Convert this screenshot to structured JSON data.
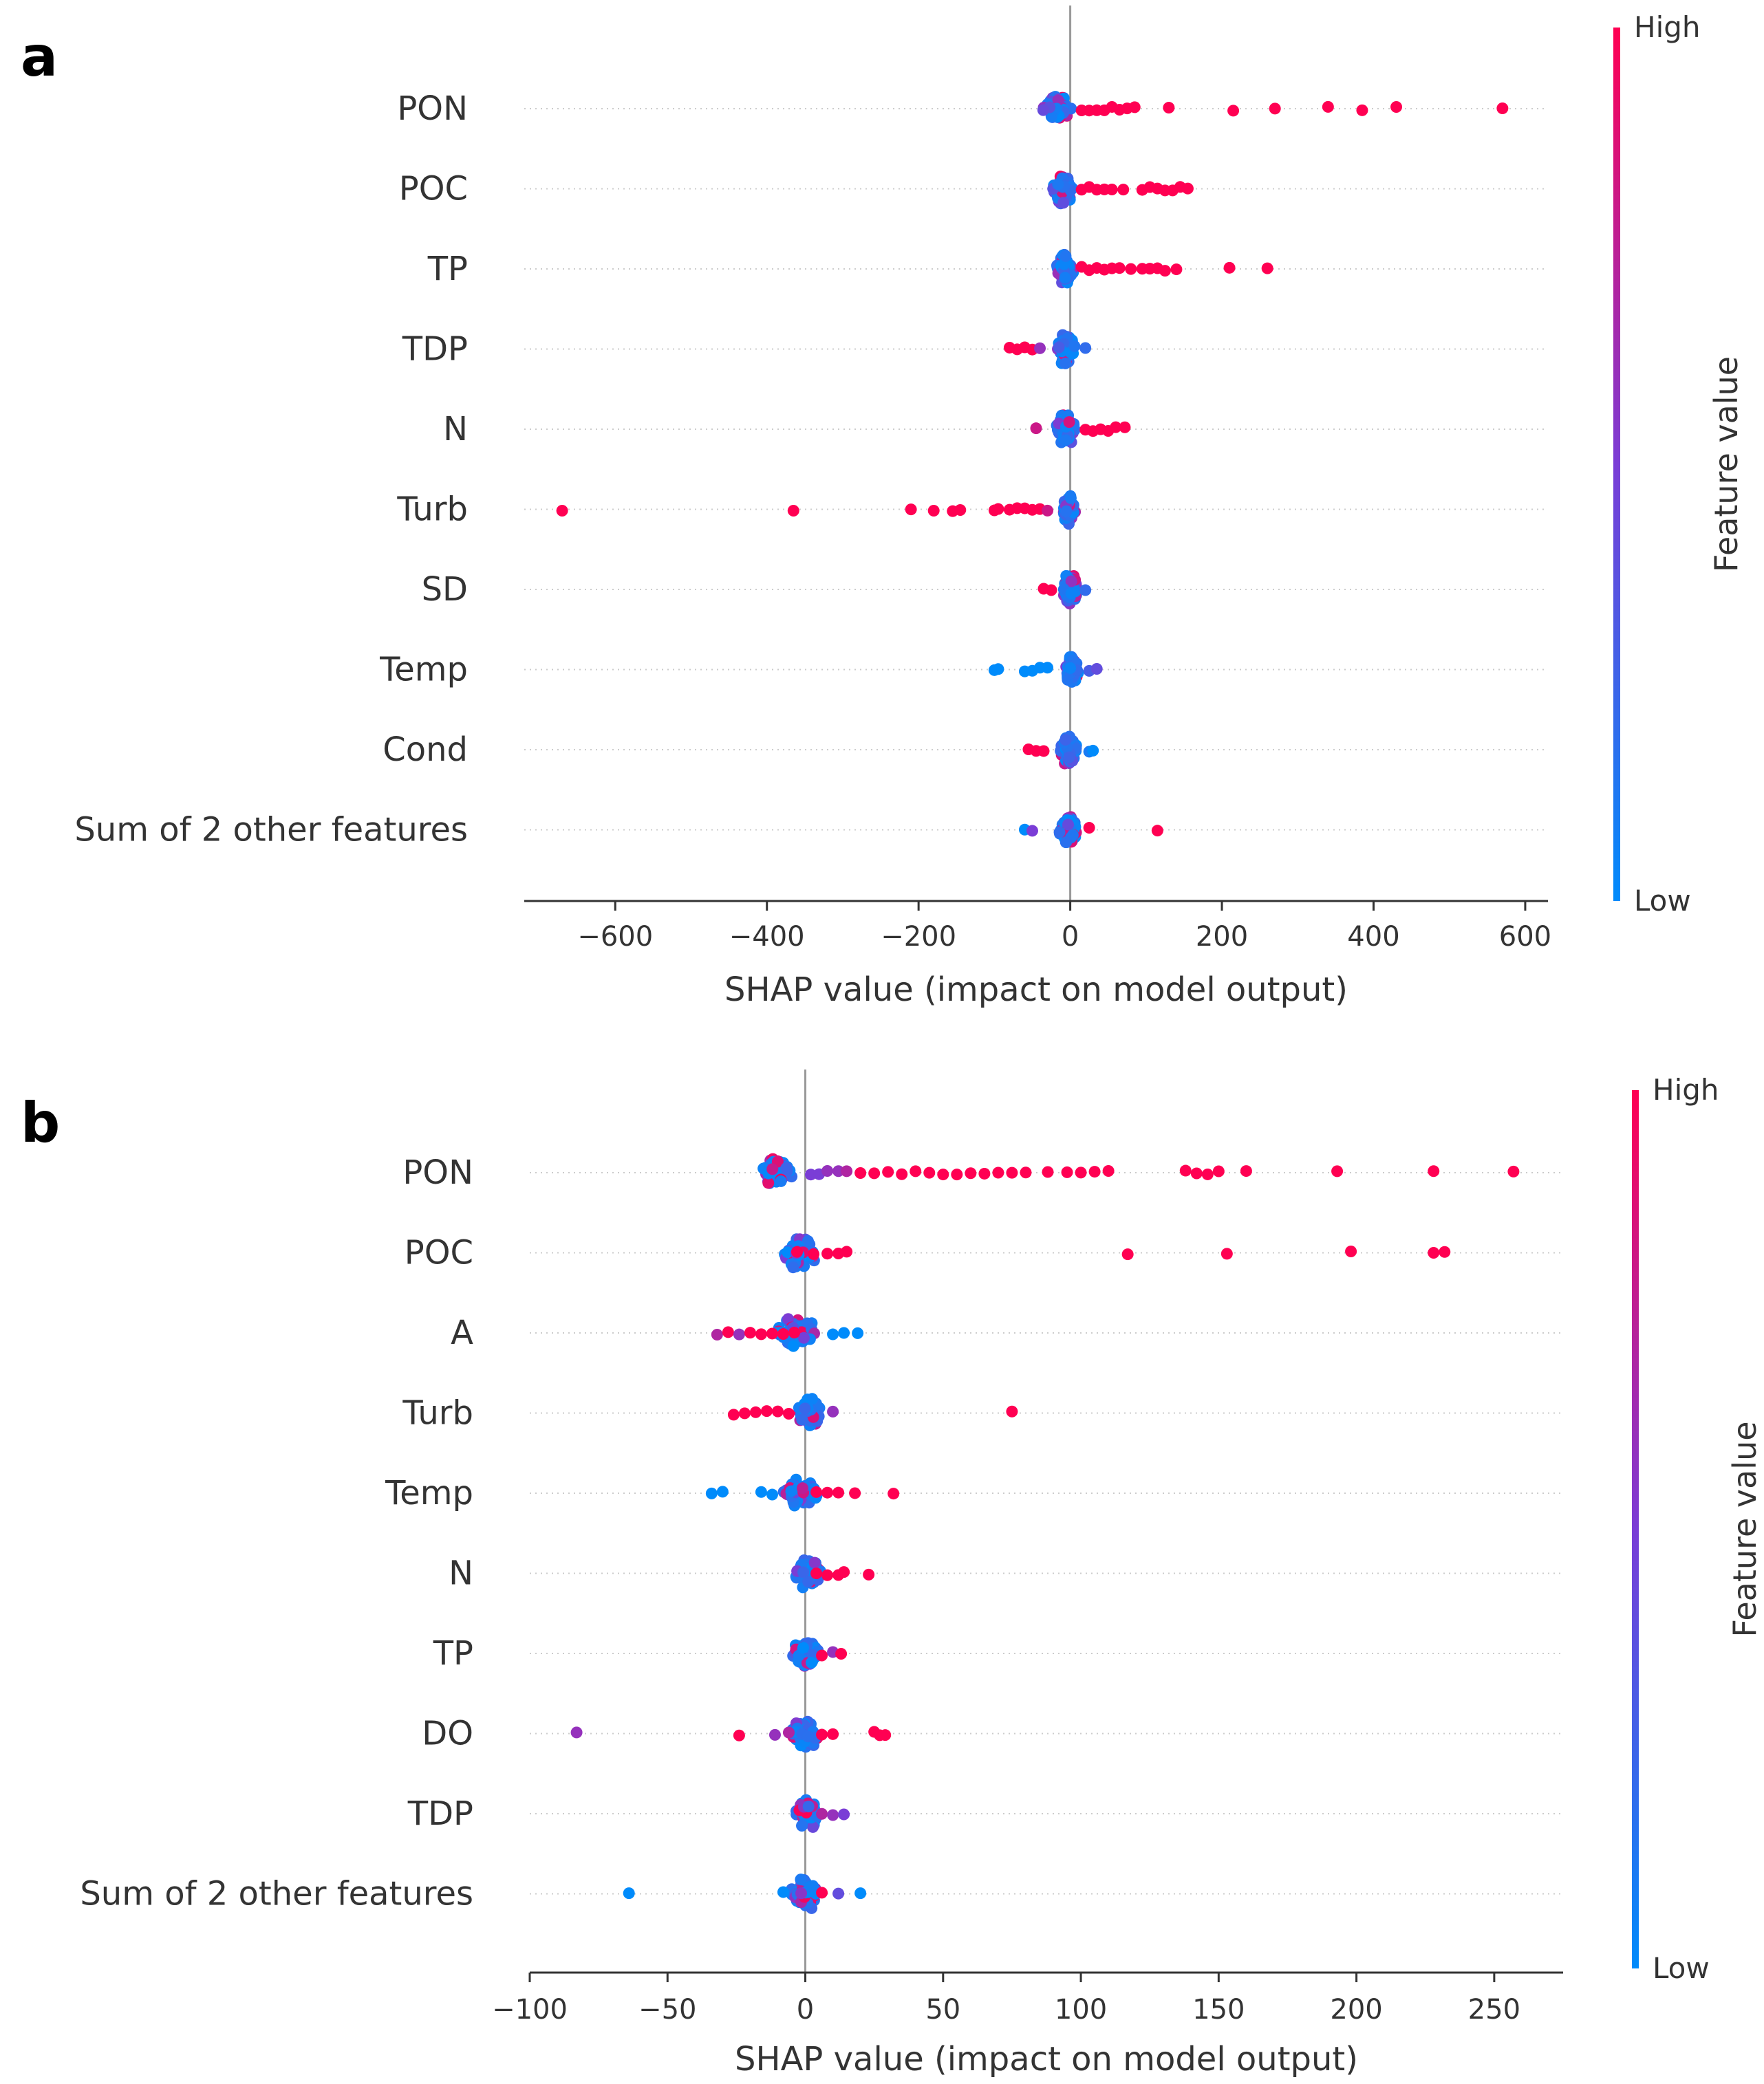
{
  "colors": {
    "high": "#ff0052",
    "low": "#008bfb",
    "zero_line": "#999999",
    "axis": "#333333",
    "guide": "#cccccc"
  },
  "chart_data": [
    {
      "panel": "a",
      "type": "scatter",
      "subtype": "shap-beeswarm",
      "xlabel": "SHAP value (impact on model output)",
      "xlim": [
        -720,
        630
      ],
      "xticks": [
        -600,
        -400,
        -200,
        0,
        200,
        400,
        600
      ],
      "xtick_labels": [
        "−600",
        "−400",
        "−200",
        "0",
        "200",
        "400",
        "600"
      ],
      "colorbar": {
        "title": "Feature value",
        "high_label": "High",
        "low_label": "Low"
      },
      "features": [
        {
          "name": "PON",
          "core": [
            -45,
            10
          ],
          "points": [
            [
              15,
              1
            ],
            [
              25,
              1
            ],
            [
              35,
              1
            ],
            [
              45,
              1
            ],
            [
              55,
              1
            ],
            [
              65,
              1
            ],
            [
              75,
              1
            ],
            [
              85,
              1
            ],
            [
              130,
              1
            ],
            [
              215,
              1
            ],
            [
              270,
              1
            ],
            [
              340,
              1
            ],
            [
              385,
              1
            ],
            [
              430,
              1
            ],
            [
              570,
              1
            ]
          ]
        },
        {
          "name": "POC",
          "core": [
            -30,
            10
          ],
          "points": [
            [
              15,
              1
            ],
            [
              25,
              1
            ],
            [
              35,
              1
            ],
            [
              45,
              1
            ],
            [
              55,
              1
            ],
            [
              70,
              1
            ],
            [
              95,
              1
            ],
            [
              105,
              1
            ],
            [
              115,
              1
            ],
            [
              125,
              1
            ],
            [
              135,
              1
            ],
            [
              145,
              1
            ],
            [
              155,
              1
            ]
          ]
        },
        {
          "name": "TP",
          "core": [
            -25,
            10
          ],
          "points": [
            [
              15,
              1
            ],
            [
              25,
              1
            ],
            [
              35,
              1
            ],
            [
              45,
              1
            ],
            [
              55,
              1
            ],
            [
              65,
              1
            ],
            [
              80,
              1
            ],
            [
              95,
              1
            ],
            [
              105,
              1
            ],
            [
              115,
              1
            ],
            [
              125,
              1
            ],
            [
              140,
              1
            ],
            [
              210,
              1
            ],
            [
              260,
              1
            ]
          ]
        },
        {
          "name": "TDP",
          "core": [
            -25,
            15
          ],
          "points": [
            [
              -80,
              1
            ],
            [
              -70,
              1
            ],
            [
              -60,
              1
            ],
            [
              -50,
              1
            ],
            [
              -40,
              0.6
            ],
            [
              -15,
              0.3
            ],
            [
              20,
              0.2
            ]
          ]
        },
        {
          "name": "N",
          "core": [
            -25,
            15
          ],
          "points": [
            [
              -45,
              0.8
            ],
            [
              20,
              1
            ],
            [
              30,
              1
            ],
            [
              40,
              1
            ],
            [
              50,
              1
            ],
            [
              60,
              1
            ],
            [
              72,
              1
            ]
          ]
        },
        {
          "name": "Turb",
          "core": [
            -15,
            12
          ],
          "points": [
            [
              -670,
              1
            ],
            [
              -365,
              1
            ],
            [
              -210,
              1
            ],
            [
              -180,
              1
            ],
            [
              -155,
              1
            ],
            [
              -145,
              1
            ],
            [
              -100,
              1
            ],
            [
              -95,
              1
            ],
            [
              -80,
              1
            ],
            [
              -70,
              1
            ],
            [
              -60,
              1
            ],
            [
              -50,
              1
            ],
            [
              -40,
              1
            ],
            [
              -30,
              0.8
            ]
          ]
        },
        {
          "name": "SD",
          "core": [
            -15,
            15
          ],
          "points": [
            [
              -35,
              1
            ],
            [
              -25,
              1
            ],
            [
              20,
              0.2
            ]
          ]
        },
        {
          "name": "Temp",
          "core": [
            -10,
            15
          ],
          "points": [
            [
              -100,
              0
            ],
            [
              -95,
              0
            ],
            [
              -60,
              0
            ],
            [
              -50,
              0
            ],
            [
              -40,
              0
            ],
            [
              -30,
              0
            ],
            [
              25,
              0.3
            ],
            [
              35,
              0.4
            ]
          ]
        },
        {
          "name": "Cond",
          "core": [
            -20,
            15
          ],
          "points": [
            [
              -55,
              1
            ],
            [
              -45,
              1
            ],
            [
              -35,
              1
            ],
            [
              25,
              0.1
            ],
            [
              30,
              0
            ]
          ]
        },
        {
          "name": "Sum of 2 other features",
          "core": [
            -20,
            15
          ],
          "points": [
            [
              -60,
              0
            ],
            [
              -50,
              0.5
            ],
            [
              25,
              1
            ],
            [
              115,
              1
            ]
          ]
        }
      ]
    },
    {
      "panel": "b",
      "type": "scatter",
      "subtype": "shap-beeswarm",
      "xlabel": "SHAP value (impact on model output)",
      "xlim": [
        -100,
        275
      ],
      "xticks": [
        -100,
        -50,
        0,
        50,
        100,
        150,
        200,
        250
      ],
      "xtick_labels": [
        "−100",
        "−50",
        "0",
        "50",
        "100",
        "150",
        "200",
        "250"
      ],
      "colorbar": {
        "title": "Feature value",
        "high_label": "High",
        "low_label": "Low"
      },
      "features": [
        {
          "name": "PON",
          "core": [
            -18,
            -2
          ],
          "points": [
            [
              2,
              0.5
            ],
            [
              5,
              0.5
            ],
            [
              8,
              0.6
            ],
            [
              12,
              0.6
            ],
            [
              15,
              0.7
            ],
            [
              20,
              1
            ],
            [
              25,
              1
            ],
            [
              30,
              1
            ],
            [
              35,
              1
            ],
            [
              40,
              1
            ],
            [
              45,
              1
            ],
            [
              50,
              1
            ],
            [
              55,
              1
            ],
            [
              60,
              1
            ],
            [
              65,
              1
            ],
            [
              70,
              1
            ],
            [
              75,
              1
            ],
            [
              80,
              1
            ],
            [
              88,
              1
            ],
            [
              95,
              1
            ],
            [
              100,
              1
            ],
            [
              105,
              1
            ],
            [
              110,
              1
            ],
            [
              138,
              1
            ],
            [
              142,
              1
            ],
            [
              146,
              1
            ],
            [
              150,
              1
            ],
            [
              160,
              1
            ],
            [
              193,
              1
            ],
            [
              228,
              1
            ],
            [
              257,
              1
            ]
          ]
        },
        {
          "name": "POC",
          "core": [
            -12,
            8
          ],
          "points": [
            [
              -3,
              1
            ],
            [
              3,
              1
            ],
            [
              8,
              1
            ],
            [
              12,
              1
            ],
            [
              15,
              1
            ],
            [
              117,
              1
            ],
            [
              153,
              1
            ],
            [
              198,
              1
            ],
            [
              228,
              1
            ],
            [
              232,
              1
            ]
          ]
        },
        {
          "name": "A",
          "core": [
            -15,
            8
          ],
          "points": [
            [
              -32,
              0.7
            ],
            [
              -28,
              1
            ],
            [
              -24,
              0.6
            ],
            [
              -20,
              1
            ],
            [
              -16,
              1
            ],
            [
              -12,
              1
            ],
            [
              -8,
              1
            ],
            [
              -4,
              1
            ],
            [
              10,
              0
            ],
            [
              14,
              0
            ],
            [
              19,
              0
            ]
          ]
        },
        {
          "name": "Turb",
          "core": [
            -5,
            8
          ],
          "points": [
            [
              -26,
              1
            ],
            [
              -22,
              1
            ],
            [
              -18,
              1
            ],
            [
              -14,
              1
            ],
            [
              -10,
              1
            ],
            [
              -6,
              1
            ],
            [
              10,
              0.6
            ],
            [
              75,
              1
            ]
          ]
        },
        {
          "name": "Temp",
          "core": [
            -12,
            8
          ],
          "points": [
            [
              -34,
              0
            ],
            [
              -30,
              0
            ],
            [
              -16,
              0
            ],
            [
              -12,
              0
            ],
            [
              4,
              1
            ],
            [
              8,
              1
            ],
            [
              12,
              1
            ],
            [
              18,
              1
            ],
            [
              32,
              1
            ]
          ]
        },
        {
          "name": "N",
          "core": [
            -6,
            8
          ],
          "points": [
            [
              4,
              1
            ],
            [
              8,
              1
            ],
            [
              12,
              1
            ],
            [
              14,
              1
            ],
            [
              23,
              1
            ]
          ]
        },
        {
          "name": "TP",
          "core": [
            -8,
            8
          ],
          "points": [
            [
              6,
              1
            ],
            [
              10,
              0.6
            ],
            [
              13,
              1
            ]
          ]
        },
        {
          "name": "DO",
          "core": [
            -8,
            8
          ],
          "points": [
            [
              -83,
              0.6
            ],
            [
              -24,
              1
            ],
            [
              -11,
              0.6
            ],
            [
              -6,
              0.7
            ],
            [
              6,
              1
            ],
            [
              10,
              1
            ],
            [
              25,
              1
            ],
            [
              27,
              1
            ],
            [
              29,
              1
            ]
          ]
        },
        {
          "name": "TDP",
          "core": [
            -6,
            8
          ],
          "points": [
            [
              6,
              0.7
            ],
            [
              10,
              0.6
            ],
            [
              14,
              0.5
            ]
          ]
        },
        {
          "name": "Sum of 2 other features",
          "core": [
            -8,
            8
          ],
          "points": [
            [
              -64,
              0
            ],
            [
              -8,
              0
            ],
            [
              6,
              1
            ],
            [
              12,
              0.4
            ],
            [
              20,
              0
            ]
          ]
        }
      ]
    }
  ]
}
